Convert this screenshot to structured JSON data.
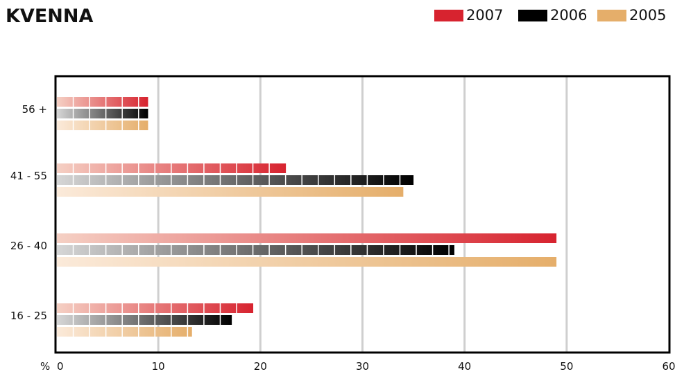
{
  "chart_data": {
    "type": "bar",
    "orientation": "horizontal",
    "title": "KVENNA",
    "categories": [
      "56 +",
      "41 - 55",
      "26 - 40",
      "16 - 25"
    ],
    "series": [
      {
        "name": "2007",
        "color": "#d7232f",
        "values": [
          9,
          22.5,
          49,
          19.3
        ]
      },
      {
        "name": "2006",
        "color": "#000000",
        "values": [
          9,
          35,
          39,
          17.2
        ]
      },
      {
        "name": "2005",
        "color": "#e5ae6a",
        "values": [
          9,
          34,
          49,
          13.3
        ]
      }
    ],
    "xlim": [
      0,
      60
    ],
    "xticks": [
      0,
      10,
      20,
      30,
      40,
      50,
      60
    ],
    "xlabel_prefix": "%",
    "grid": true,
    "legend_position": "top-right"
  }
}
